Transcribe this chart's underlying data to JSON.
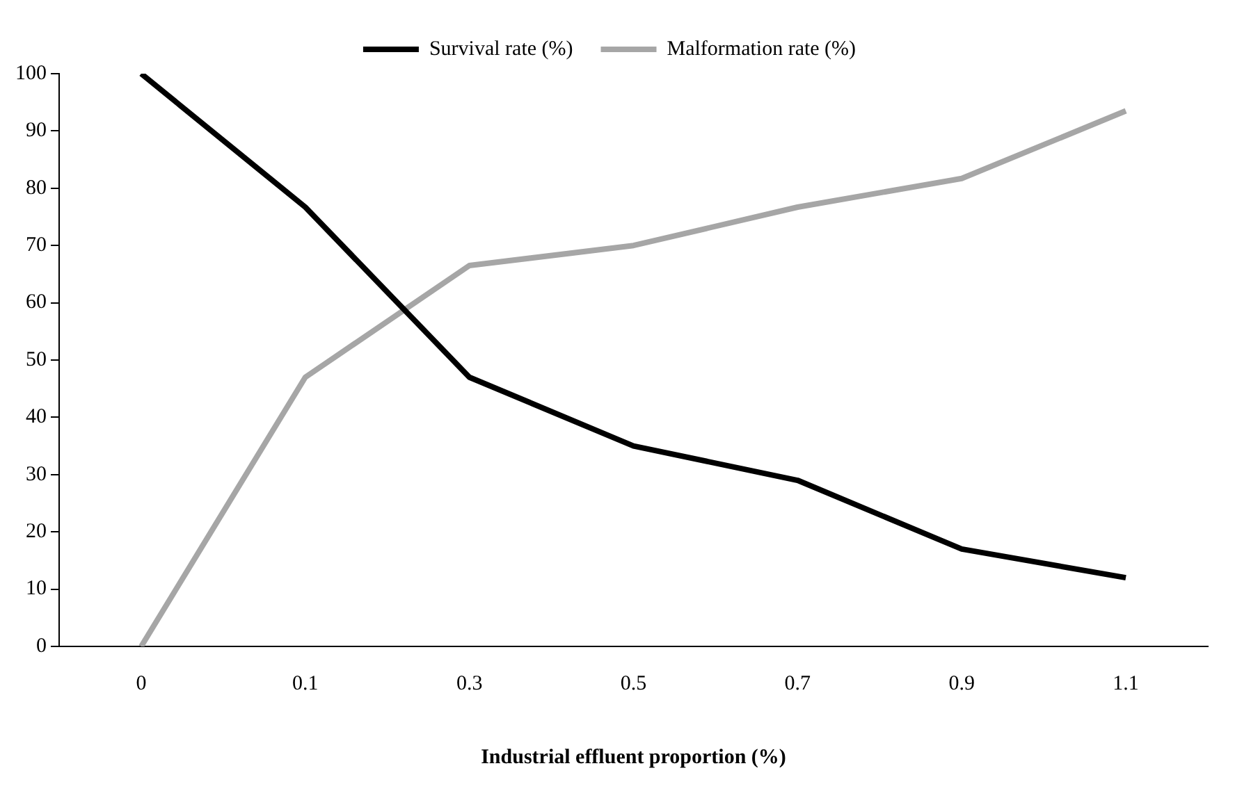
{
  "chart_data": {
    "type": "line",
    "xlabel": "Industrial effluent proportion (%)",
    "categories": [
      "0",
      "0.1",
      "0.3",
      "0.5",
      "0.7",
      "0.9",
      "1.1"
    ],
    "series": [
      {
        "name": "Survival rate (%)",
        "color": "#000000",
        "values": [
          100,
          76.7,
          47,
          35,
          29,
          17,
          12
        ]
      },
      {
        "name": "Malformation rate (%)",
        "color": "#a6a6a6",
        "values": [
          0,
          47,
          66.5,
          70,
          76.7,
          81.7,
          93.5
        ]
      }
    ],
    "ylim": [
      0,
      100
    ],
    "yticks": [
      0,
      10,
      20,
      30,
      40,
      50,
      60,
      70,
      80,
      90,
      100
    ],
    "grid": false,
    "legend": "top",
    "marker": "none",
    "line_style": "solid"
  }
}
